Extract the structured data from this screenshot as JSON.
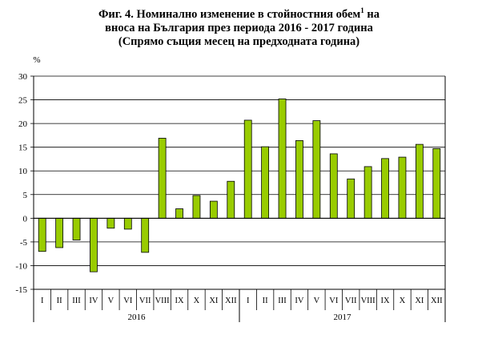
{
  "title": {
    "line1": "Фиг. 4. Номинално изменение в стойностния обем",
    "sup": "1",
    "line1_end": " на",
    "line2": "вноса на България през периода 2016 - 2017 година",
    "line3": "(Спрямо същия месец на предходната година)"
  },
  "chart_data": {
    "type": "bar",
    "ylabel": "%",
    "ylim": [
      -15,
      30
    ],
    "yticks": [
      30,
      25,
      20,
      15,
      10,
      5,
      0,
      -5,
      -10,
      -15
    ],
    "grid": true,
    "bar_color": "#99cc00",
    "bar_edge_color": "#000000",
    "categories": [
      "I",
      "II",
      "III",
      "IV",
      "V",
      "VI",
      "VII",
      "VIII",
      "IX",
      "X",
      "XI",
      "XII",
      "I",
      "II",
      "III",
      "IV",
      "V",
      "VI",
      "VII",
      "VIII",
      "IX",
      "X",
      "XI",
      "XII"
    ],
    "groups": [
      {
        "label": "2016",
        "count": 12
      },
      {
        "label": "2017",
        "count": 12
      }
    ],
    "series": [
      {
        "values": [
          -7.0,
          -6.2,
          -4.6,
          -11.3,
          -2.1,
          -2.3,
          -7.2,
          16.9,
          2.0,
          4.8,
          3.6,
          7.8,
          20.7,
          15.1,
          25.2,
          16.4,
          20.6,
          13.6,
          8.3,
          10.9,
          12.6,
          12.9,
          15.6,
          14.7
        ]
      }
    ]
  }
}
